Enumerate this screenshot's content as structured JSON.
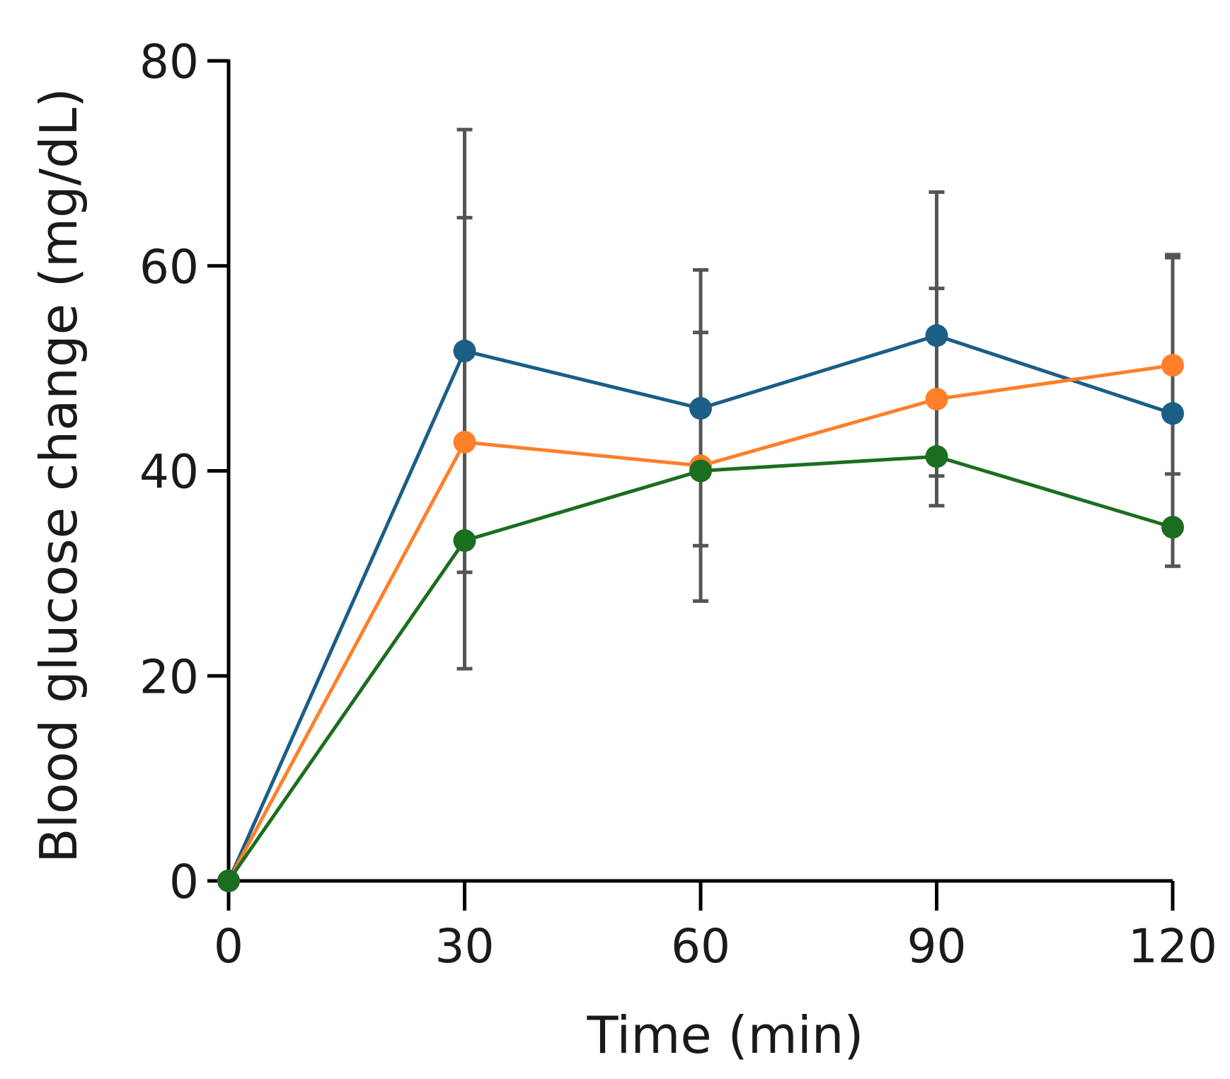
{
  "chart_data": {
    "type": "line",
    "title": "",
    "xlabel": "Time (min)",
    "ylabel": "Blood glucose change (mg/dL)",
    "x": [
      0,
      30,
      60,
      90,
      120
    ],
    "xlim": [
      0,
      120
    ],
    "ylim": [
      0,
      80
    ],
    "xticks": [
      0,
      30,
      60,
      90,
      120
    ],
    "yticks": [
      0,
      20,
      40,
      60,
      80
    ],
    "grid": false,
    "legend": "none",
    "series": [
      {
        "name": "Blue",
        "color": "#1b5e86",
        "values": [
          0,
          51.7,
          46.1,
          53.2,
          45.6
        ],
        "error_upper": [
          0,
          64.7,
          53.5,
          57.8,
          60.8
        ],
        "error_lower": [
          0,
          30.1,
          32.7,
          39.5,
          30.7
        ]
      },
      {
        "name": "Orange",
        "color": "#ff7f2a",
        "values": [
          0,
          42.8,
          40.5,
          47.0,
          50.3
        ],
        "error_upper": [
          0,
          73.3,
          59.6,
          67.2,
          61.1
        ],
        "error_lower": [
          0,
          20.7,
          27.3,
          36.6,
          39.7
        ]
      },
      {
        "name": "Green",
        "color": "#1b6e1f",
        "values": [
          0,
          33.2,
          40.0,
          41.4,
          34.5
        ],
        "error_upper": [],
        "error_lower": []
      }
    ]
  }
}
